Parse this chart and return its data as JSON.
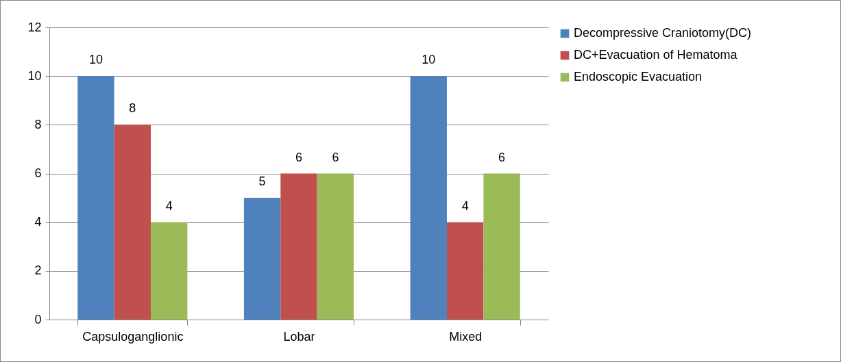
{
  "chart_data": {
    "type": "bar",
    "categories": [
      "Capsuloganglionic",
      "Lobar",
      "Mixed"
    ],
    "series": [
      {
        "name": "Decompressive Craniotomy(DC)",
        "color": "#4f81bd",
        "values": [
          10,
          5,
          10
        ]
      },
      {
        "name": "DC+Evacuation of Hematoma",
        "color": "#c0504d",
        "values": [
          8,
          6,
          4
        ]
      },
      {
        "name": "Endoscopic Evacuation",
        "color": "#9bbb59",
        "values": [
          4,
          6,
          6
        ]
      }
    ],
    "ylim": [
      0,
      12
    ],
    "yticks": [
      0,
      2,
      4,
      6,
      8,
      10,
      12
    ],
    "grid": "y",
    "legend": "right",
    "data_labels": true
  }
}
